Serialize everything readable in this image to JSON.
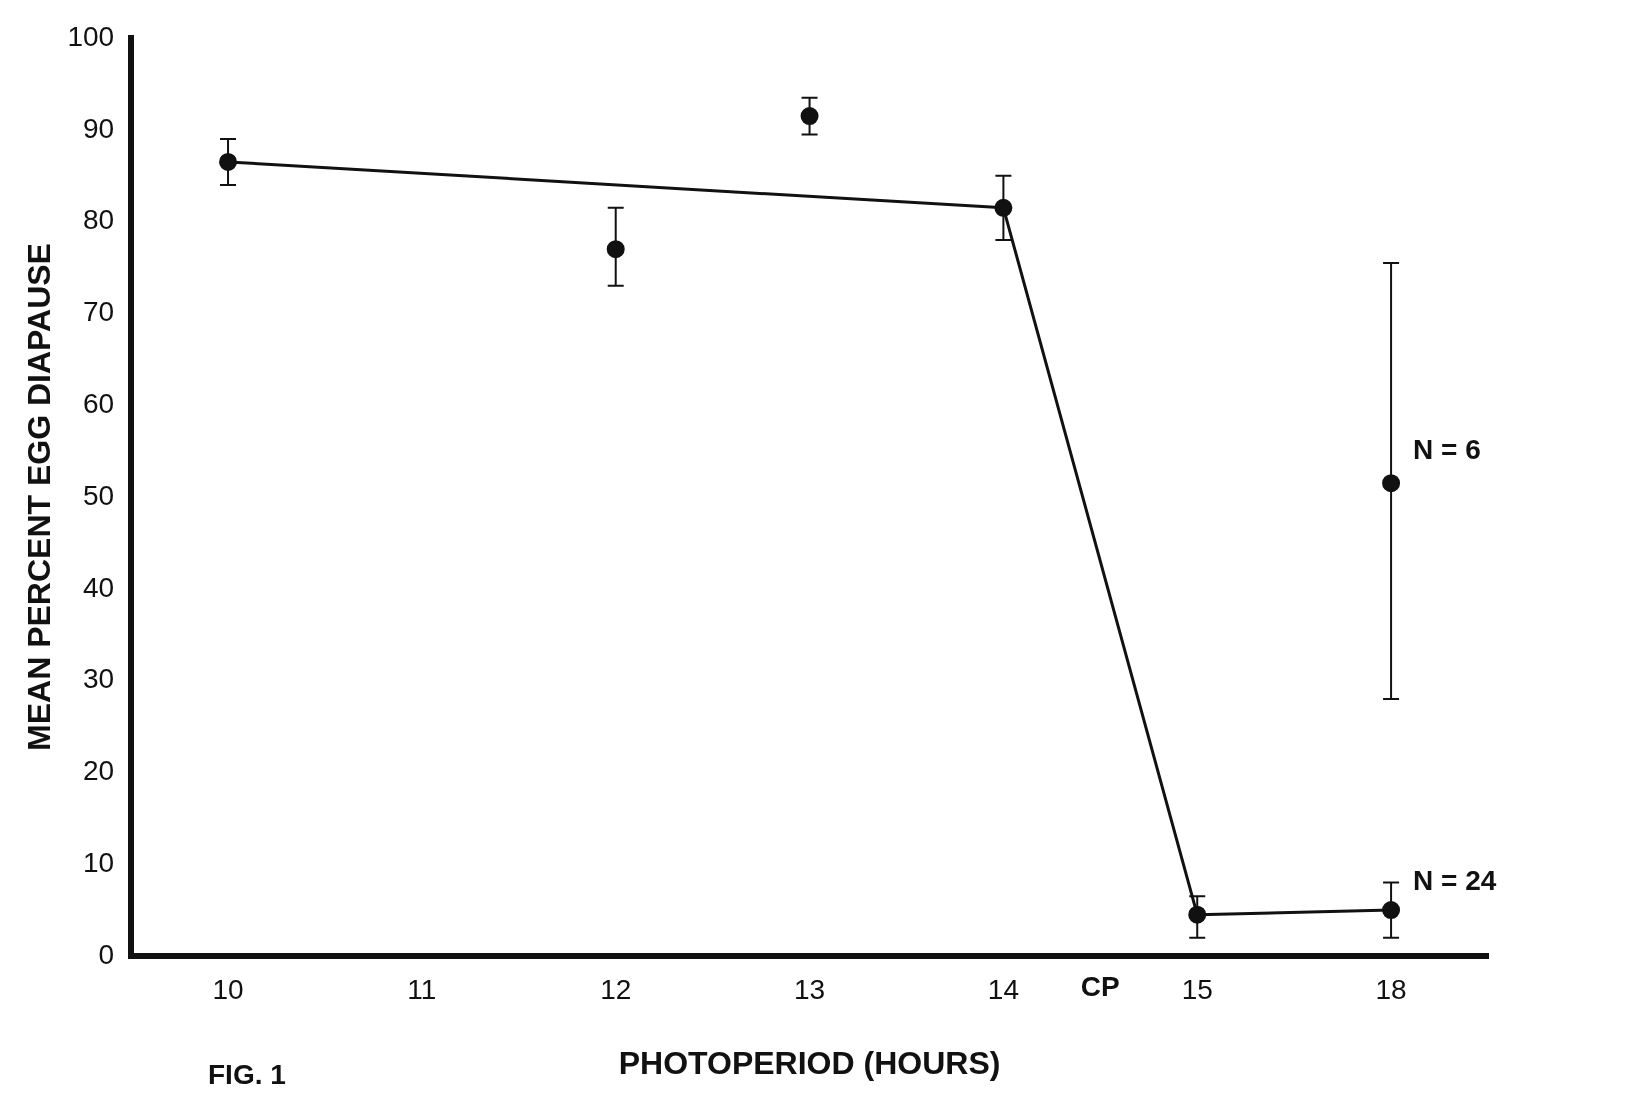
{
  "chart_data": {
    "type": "line",
    "xlabel": "PHOTOPERIOD (HOURS)",
    "ylabel": "MEAN PERCENT EGG DIAPAUSE",
    "categories": [
      "10",
      "11",
      "12",
      "13",
      "14",
      "15",
      "18"
    ],
    "series": [
      {
        "color": "#111111",
        "values": [
          86.5,
          null,
          null,
          null,
          81.5,
          4.5,
          5
        ],
        "errors": [
          [
            84,
            89
          ],
          null,
          null,
          null,
          [
            78,
            85
          ],
          [
            2,
            6.5
          ],
          [
            2,
            8
          ]
        ]
      },
      {
        "type": "scatter",
        "color": "#111111",
        "values": [
          null,
          null,
          77,
          91.5,
          null,
          null,
          null
        ],
        "errors": [
          null,
          null,
          [
            73,
            81.5
          ],
          [
            89.5,
            93.5
          ],
          null,
          null,
          null
        ]
      },
      {
        "type": "scatter",
        "color": "#111111",
        "values": [
          null,
          null,
          null,
          null,
          null,
          null,
          51.5
        ],
        "errors": [
          null,
          null,
          null,
          null,
          null,
          null,
          [
            28,
            75.5
          ]
        ]
      }
    ],
    "ylim": [
      0,
      100
    ],
    "yticks": [
      0,
      10,
      20,
      30,
      40,
      50,
      60,
      70,
      80,
      90,
      100
    ],
    "grid": false,
    "legend": false,
    "marker": "circle",
    "line_style": "solid",
    "annotations": [
      "FIG. 1",
      "CP",
      {
        "text": "N = 6",
        "x": "18",
        "y": 55
      },
      {
        "text": "N = 24",
        "x": "18",
        "y": 8
      }
    ]
  }
}
